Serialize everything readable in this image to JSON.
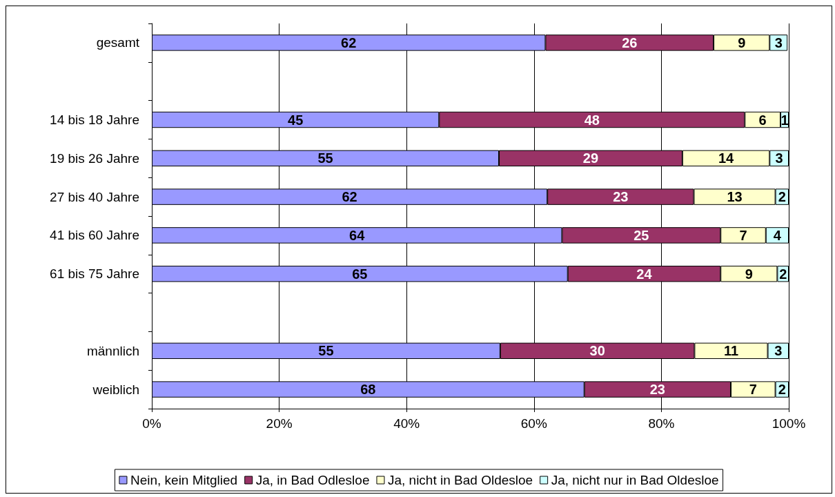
{
  "chart_data": {
    "type": "bar",
    "orientation": "horizontal",
    "stacked": true,
    "categories": [
      "gesamt",
      null,
      "14 bis 18 Jahre",
      "19 bis 26 Jahre",
      "27 bis 40 Jahre",
      "41 bis 60 Jahre",
      "61 bis 75 Jahre",
      null,
      "männlich",
      "weiblich"
    ],
    "series": [
      {
        "name": "Nein, kein Mitglied",
        "color": "#9999ff",
        "values": [
          61.8,
          null,
          45.1,
          54.5,
          62.1,
          64.4,
          65.3,
          null,
          54.7,
          67.9
        ],
        "value_labels": [
          "62",
          null,
          "45",
          "55",
          "62",
          "64",
          "65",
          null,
          "55",
          "68"
        ]
      },
      {
        "name": "Ja, in Bad Odlesloe",
        "color": "#993366",
        "values": [
          26.4,
          null,
          48.0,
          28.8,
          23.0,
          24.9,
          24.0,
          null,
          30.5,
          23.0
        ],
        "value_labels": [
          "26",
          null,
          "48",
          "29",
          "23",
          "25",
          "24",
          null,
          "30",
          "23"
        ]
      },
      {
        "name": "Ja, nicht in Bad Oldesloe",
        "color": "#ffffcc",
        "values": [
          8.8,
          null,
          5.6,
          13.7,
          12.8,
          7.1,
          8.9,
          null,
          11.5,
          7.0
        ],
        "value_labels": [
          "9",
          null,
          "6",
          "14",
          "13",
          "7",
          "9",
          null,
          "11",
          "7"
        ]
      },
      {
        "name": "Ja, nicht nur in Bad Oldesloe",
        "color": "#ccffff",
        "values": [
          2.8,
          null,
          1.3,
          3.0,
          2.1,
          3.6,
          1.8,
          null,
          3.3,
          2.1
        ],
        "value_labels": [
          "3",
          null,
          "1",
          "3",
          "2",
          "4",
          "2",
          null,
          "3",
          "2"
        ]
      }
    ],
    "xlim": [
      0,
      100
    ],
    "xticks": [
      {
        "value": 0,
        "label": "0%"
      },
      {
        "value": 20,
        "label": "20%"
      },
      {
        "value": 40,
        "label": "40%"
      },
      {
        "value": 60,
        "label": "60%"
      },
      {
        "value": 80,
        "label": "80%"
      },
      {
        "value": 100,
        "label": "100%"
      }
    ],
    "grid": "x",
    "legend": "bottom"
  }
}
